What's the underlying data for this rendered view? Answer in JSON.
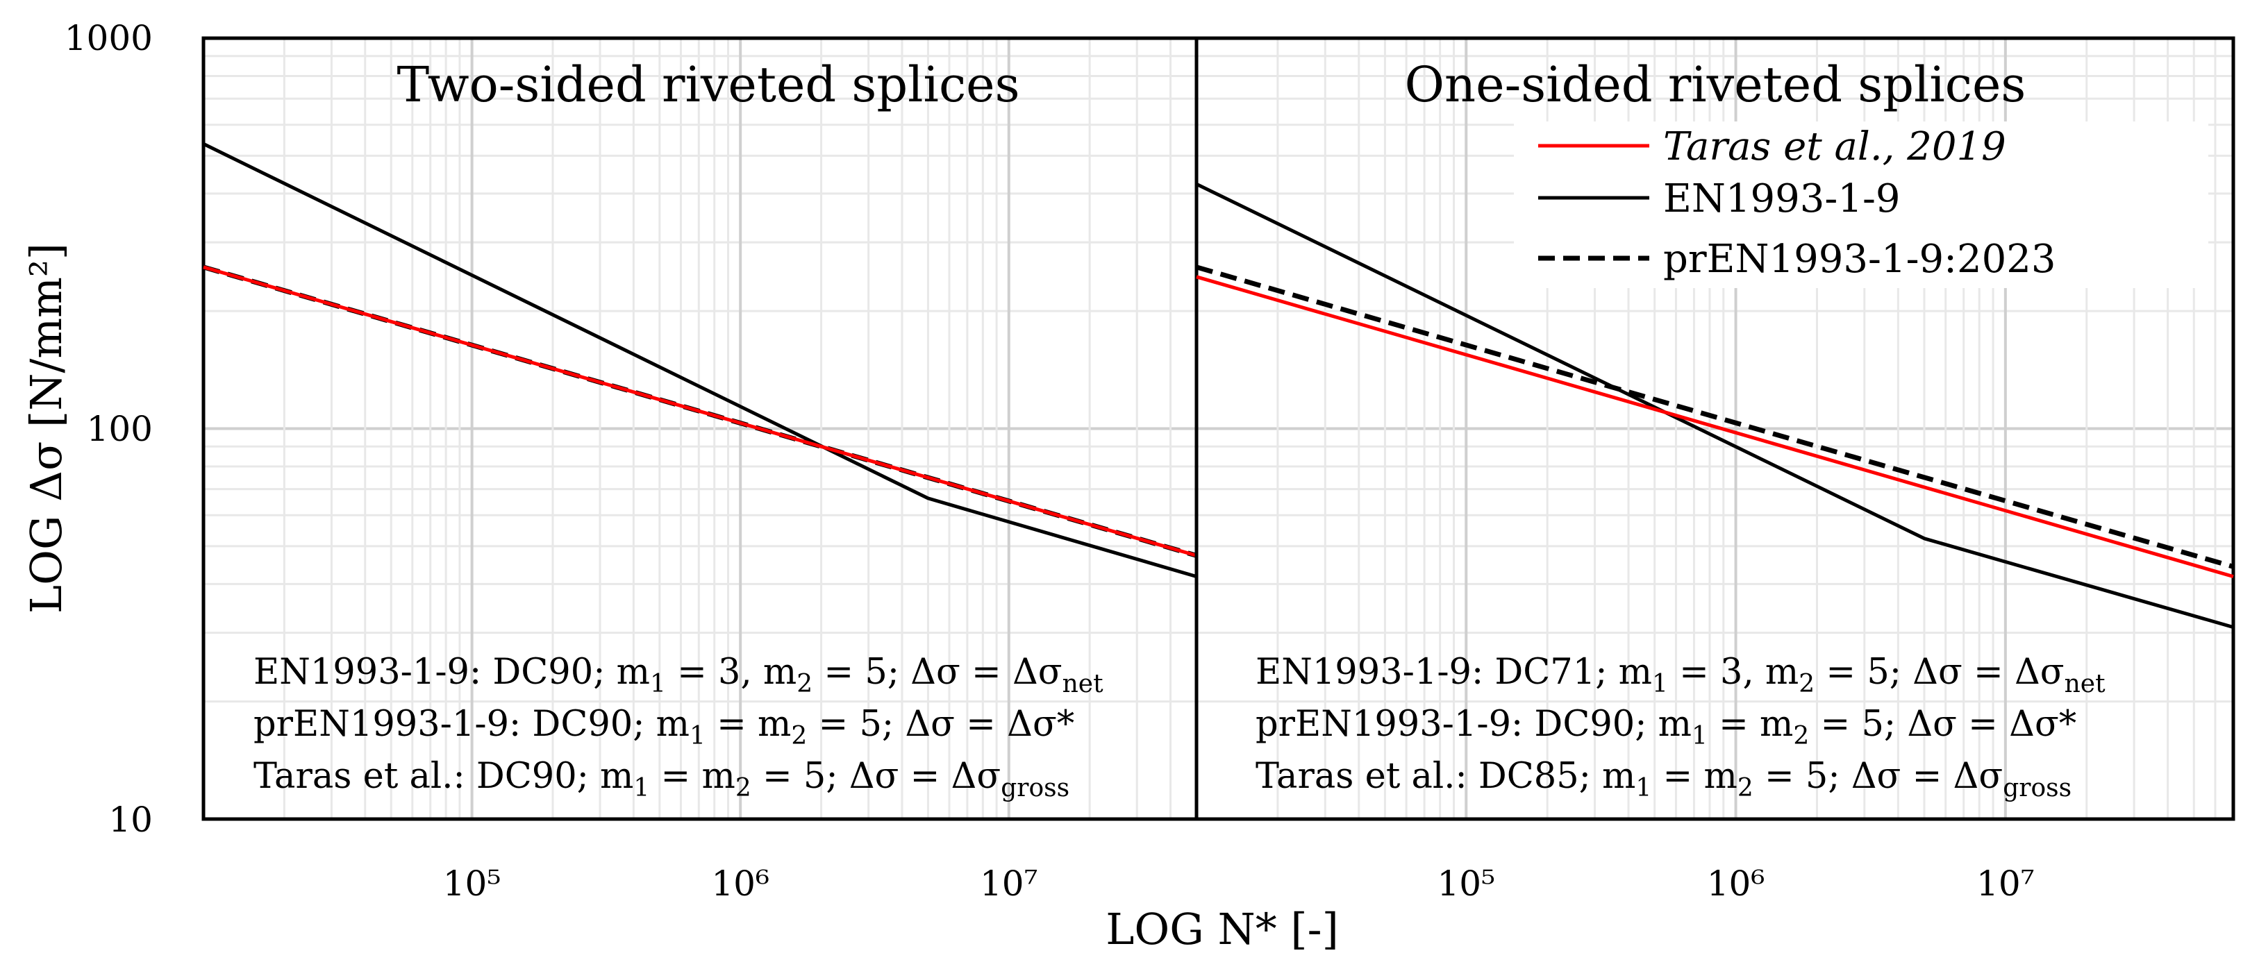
{
  "chart_data": {
    "type": "line",
    "xlabel": "LOG N* [-]",
    "ylabel": "LOG Δσ [N/mm²]",
    "yscale": "log",
    "xscale": "log",
    "ylim": [
      10,
      1000
    ],
    "ytick_labels": [
      "1000",
      "100",
      "10"
    ],
    "legend": {
      "placement": "top-right of right panel",
      "entries": [
        {
          "label": "Taras et al., 2019",
          "color": "#ff0000",
          "style": "solid",
          "italic": true
        },
        {
          "label": "EN1993-1-9",
          "color": "#000000",
          "style": "solid",
          "italic": false
        },
        {
          "label": "prEN1993-1-9:2023",
          "color": "#000000",
          "style": "dashed",
          "italic": false
        }
      ]
    },
    "panels": [
      {
        "title": "Two-sided riveted splices",
        "xlim": [
          10000,
          50000000
        ],
        "xticks": [
          {
            "value": 100000,
            "label": "10⁵"
          },
          {
            "value": 1000000,
            "label": "10⁶"
          },
          {
            "value": 10000000,
            "label": "10⁷"
          }
        ],
        "annotations": [
          "EN1993-1-9: DC90; m₁ = 3, m₂ = 5; Δσ = Δσₙₑₜ",
          "prEN1993-1-9: DC90; m₁ = m₂ = 5; Δσ = Δσ*",
          "Taras et al.: DC90; m₁ = m₂ = 5; Δσ = Δσgross"
        ],
        "series": [
          {
            "name": "Taras et al., 2019",
            "x": [
              10000,
              50000000
            ],
            "y": [
              259.2,
              47.3
            ]
          },
          {
            "name": "EN1993-1-9",
            "x": [
              10000,
              5000000,
              50000000
            ],
            "y": [
              536.1,
              66.3,
              41.8
            ]
          },
          {
            "name": "prEN1993-1-9:2023",
            "x": [
              10000,
              50000000
            ],
            "y": [
              259.2,
              47.3
            ]
          }
        ]
      },
      {
        "title": "One-sided riveted splices",
        "xlim": [
          10000,
          70000000
        ],
        "xticks": [
          {
            "value": 100000,
            "label": "10⁵"
          },
          {
            "value": 1000000,
            "label": "10⁶"
          },
          {
            "value": 10000000,
            "label": "10⁷"
          }
        ],
        "annotations": [
          "EN1993-1-9: DC71; m₁ = 3, m₂ = 5; Δσ = Δσₙₑₜ",
          "prEN1993-1-9: DC90; m₁ = m₂ = 5; Δσ = Δσ*",
          "Taras et al.: DC85; m₁ = m₂ = 5; Δσ = Δσgross"
        ],
        "series": [
          {
            "name": "Taras et al., 2019",
            "x": [
              10000,
              70000000
            ],
            "y": [
              244.8,
              41.8
            ]
          },
          {
            "name": "EN1993-1-9",
            "x": [
              10000,
              5000000,
              70000000
            ],
            "y": [
              422.9,
              52.3,
              31.0
            ]
          },
          {
            "name": "prEN1993-1-9:2023",
            "x": [
              10000,
              70000000
            ],
            "y": [
              259.2,
              44.3
            ]
          }
        ]
      }
    ]
  }
}
